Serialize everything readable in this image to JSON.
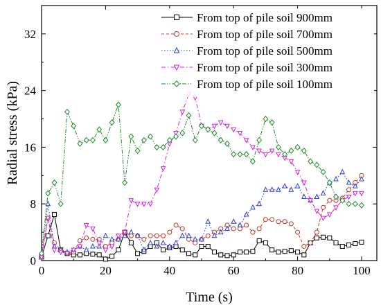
{
  "chart_data": {
    "type": "line",
    "title": "",
    "xlabel": "Time (s)",
    "ylabel": "Radial stress (kPa)",
    "xlim": [
      0,
      100
    ],
    "ylim": [
      0,
      36
    ],
    "xticks": [
      "0",
      "20",
      "40",
      "60",
      "80",
      "100"
    ],
    "yticks": [
      "0",
      "8",
      "16",
      "24",
      "32"
    ],
    "grid": false,
    "legend_position": "top-right",
    "series": [
      {
        "name": "From top of pile soil 900mm",
        "color": "#000000",
        "marker": "square",
        "dash": "solid",
        "x": [
          0,
          2,
          4,
          6,
          8,
          10,
          12,
          14,
          16,
          18,
          20,
          22,
          24,
          26,
          28,
          30,
          32,
          34,
          36,
          38,
          40,
          42,
          44,
          46,
          48,
          50,
          52,
          54,
          56,
          58,
          60,
          62,
          64,
          66,
          68,
          70,
          72,
          74,
          76,
          78,
          80,
          82,
          84,
          86,
          88,
          90,
          92,
          94,
          96,
          98,
          100
        ],
        "y": [
          0.5,
          3.5,
          6.5,
          1.5,
          1.0,
          0.8,
          0.8,
          1.0,
          0.9,
          0.8,
          0.2,
          0.6,
          1.5,
          4.0,
          2.5,
          1.0,
          1.3,
          2.0,
          2.5,
          1.5,
          1.8,
          2.0,
          1.5,
          1.0,
          0.8,
          2.0,
          2.0,
          1.2,
          0.8,
          0.7,
          0.8,
          1.2,
          1.2,
          1.3,
          2.8,
          2.5,
          1.5,
          1.2,
          1.3,
          1.4,
          1.2,
          0.8,
          2.5,
          3.2,
          3.3,
          3.2,
          2.5,
          2.0,
          2.2,
          2.4,
          2.6
        ]
      },
      {
        "name": "From top of pile soil 700mm",
        "color": "#c0392b",
        "marker": "circle",
        "dash": "dashed",
        "x": [
          0,
          2,
          4,
          6,
          8,
          10,
          12,
          14,
          16,
          18,
          20,
          22,
          24,
          26,
          28,
          30,
          32,
          34,
          36,
          38,
          40,
          42,
          44,
          46,
          48,
          50,
          52,
          54,
          56,
          58,
          60,
          62,
          64,
          66,
          68,
          70,
          72,
          74,
          76,
          78,
          80,
          82,
          84,
          86,
          88,
          90,
          92,
          94,
          96,
          98,
          100
        ],
        "y": [
          0.8,
          6.0,
          2.5,
          1.5,
          1.0,
          1.2,
          2.8,
          3.2,
          3.0,
          3.0,
          2.0,
          2.5,
          3.0,
          4.0,
          3.5,
          3.5,
          3.0,
          3.5,
          3.5,
          3.5,
          4.0,
          5.0,
          4.5,
          3.0,
          2.5,
          3.0,
          3.5,
          4.0,
          4.5,
          5.0,
          4.5,
          4.5,
          5.0,
          4.0,
          4.5,
          5.8,
          5.8,
          5.5,
          5.5,
          5.2,
          4.0,
          2.0,
          2.5,
          4.0,
          7.5,
          8.5,
          8.5,
          8.8,
          10.0,
          11.0,
          12.0
        ]
      },
      {
        "name": "From top of pile soil 500mm",
        "color": "#2a3fd6",
        "marker": "triangle-up",
        "dash": "dotted",
        "x": [
          0,
          2,
          4,
          6,
          8,
          10,
          12,
          14,
          16,
          18,
          20,
          22,
          24,
          26,
          28,
          30,
          32,
          34,
          36,
          38,
          40,
          42,
          44,
          46,
          48,
          50,
          52,
          54,
          56,
          58,
          60,
          62,
          64,
          66,
          68,
          70,
          72,
          74,
          76,
          78,
          80,
          82,
          84,
          86,
          88,
          90,
          92,
          94,
          96,
          98,
          100
        ],
        "y": [
          1.0,
          8.0,
          2.0,
          1.5,
          1.2,
          1.5,
          2.0,
          1.5,
          2.0,
          2.0,
          3.5,
          3.0,
          3.0,
          3.5,
          4.0,
          3.5,
          1.5,
          2.5,
          2.0,
          2.5,
          2.0,
          2.5,
          3.5,
          3.5,
          3.0,
          3.0,
          5.5,
          3.5,
          4.0,
          4.5,
          5.5,
          5.0,
          6.5,
          7.5,
          8.0,
          10.0,
          10.0,
          10.0,
          10.5,
          10.0,
          10.5,
          9.0,
          8.5,
          9.0,
          9.5,
          11.0,
          11.5,
          12.5,
          11.0,
          10.5,
          11.5
        ]
      },
      {
        "name": "From top of pile soil 300mm",
        "color": "#d61fd6",
        "marker": "triangle-down",
        "dash": "dashdot",
        "x": [
          0,
          2,
          4,
          6,
          8,
          10,
          12,
          14,
          16,
          18,
          20,
          22,
          24,
          26,
          28,
          30,
          32,
          34,
          36,
          38,
          40,
          42,
          44,
          46,
          48,
          50,
          52,
          54,
          56,
          58,
          60,
          62,
          64,
          66,
          68,
          70,
          72,
          74,
          76,
          78,
          80,
          82,
          84,
          86,
          88,
          90,
          92,
          94,
          96,
          98,
          100
        ],
        "y": [
          0.5,
          6.0,
          1.5,
          1.2,
          1.0,
          1.5,
          2.0,
          5.0,
          4.5,
          2.5,
          1.5,
          2.0,
          3.5,
          4.0,
          8.5,
          8.0,
          8.0,
          8.0,
          10.0,
          13.0,
          16.5,
          18.0,
          21.0,
          23.5,
          23.0,
          19.0,
          18.5,
          19.0,
          19.5,
          19.0,
          18.5,
          18.0,
          17.0,
          16.0,
          15.5,
          15.0,
          15.5,
          15.0,
          14.5,
          14.0,
          12.5,
          11.0,
          8.5,
          7.0,
          6.0,
          6.5,
          7.5,
          8.5,
          9.0,
          9.5,
          9.5
        ]
      },
      {
        "name": "From top of pile soil 100mm",
        "color": "#1f8a2b",
        "marker": "diamond",
        "dash": "dashdotdot",
        "x": [
          0,
          2,
          4,
          6,
          8,
          10,
          12,
          14,
          16,
          18,
          20,
          22,
          24,
          26,
          28,
          30,
          32,
          34,
          36,
          38,
          40,
          42,
          44,
          46,
          48,
          50,
          52,
          54,
          56,
          58,
          60,
          62,
          64,
          66,
          68,
          70,
          72,
          74,
          76,
          78,
          80,
          82,
          84,
          86,
          88,
          90,
          92,
          94,
          96,
          98,
          100
        ],
        "y": [
          1.0,
          9.5,
          11.0,
          8.0,
          21.0,
          19.0,
          16.5,
          17.0,
          17.0,
          18.5,
          17.0,
          19.5,
          22.0,
          11.0,
          17.5,
          15.5,
          17.0,
          17.5,
          16.0,
          16.0,
          17.0,
          17.5,
          18.0,
          20.5,
          17.0,
          19.0,
          18.5,
          18.0,
          17.0,
          16.5,
          15.0,
          15.0,
          15.0,
          14.0,
          17.0,
          20.0,
          19.5,
          16.0,
          15.0,
          15.5,
          16.0,
          15.5,
          14.0,
          13.5,
          12.5,
          11.0,
          9.0,
          8.5,
          8.0,
          8.0,
          7.8
        ]
      }
    ]
  }
}
